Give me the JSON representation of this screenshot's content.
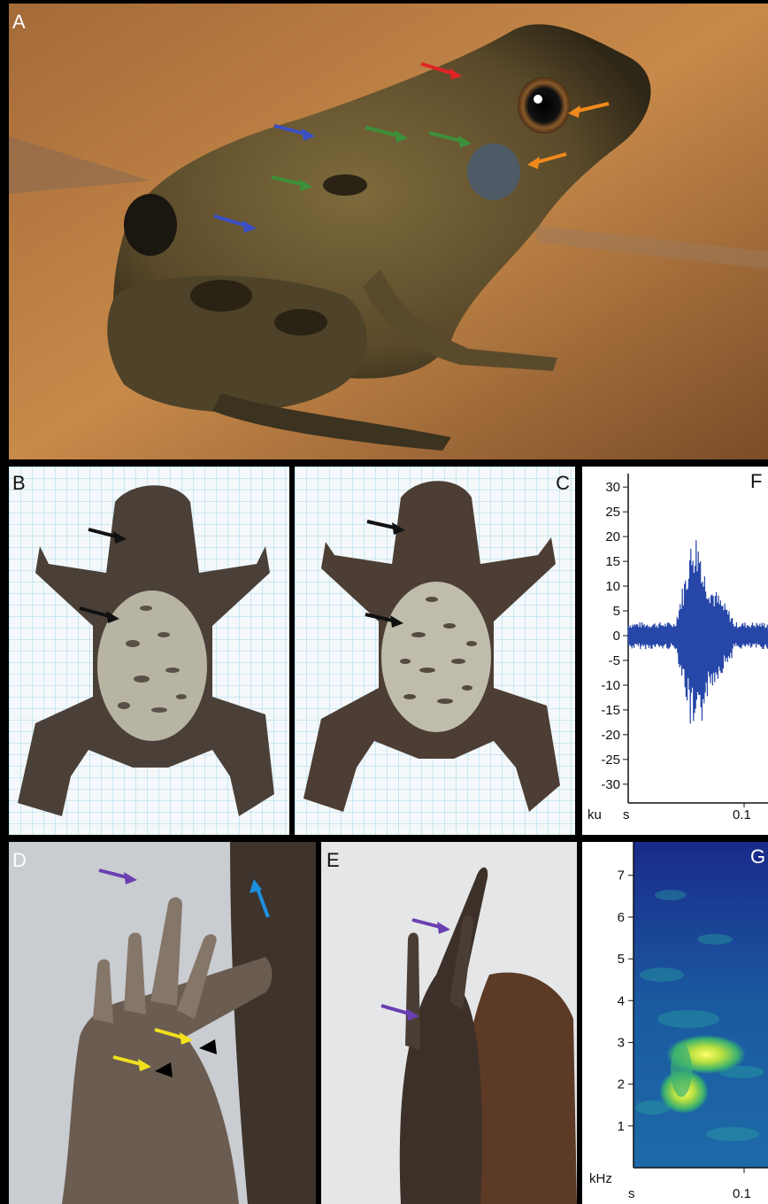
{
  "panels": {
    "A": {
      "label": "A"
    },
    "B": {
      "label": "B"
    },
    "C": {
      "label": "C"
    },
    "D": {
      "label": "D"
    },
    "E": {
      "label": "E"
    },
    "F": {
      "label": "F"
    },
    "G": {
      "label": "G"
    }
  },
  "chart_data": [
    {
      "type": "line",
      "panel": "F",
      "title": "",
      "ylabel": "ku",
      "xlabel": "s",
      "x_ticks": [
        "0.1"
      ],
      "y_ticks": [
        30,
        25,
        20,
        15,
        10,
        5,
        0,
        -5,
        -10,
        -15,
        -20,
        -25,
        -30
      ],
      "ylim": [
        -32,
        32
      ],
      "series": [
        {
          "values_peak_max": 21,
          "values_peak_min": -23
        }
      ],
      "color": "#2747a8"
    },
    {
      "type": "heatmap",
      "panel": "G",
      "title": "",
      "ylabel": "kHz",
      "xlabel": "s",
      "x_ticks": [
        "0.1"
      ],
      "y_ticks": [
        7,
        6,
        5,
        4,
        3,
        2,
        1
      ],
      "ylim": [
        0,
        7.8
      ],
      "hotspots_khz": [
        2.3,
        0.9
      ]
    }
  ],
  "colors": {
    "red_arrow": "#e02424",
    "blue_arrow": "#3a4fc4",
    "green_arrow": "#3d8f3a",
    "orange_arrow": "#f08a1c",
    "black_arrow": "#111111",
    "purple_arrow": "#6a3fb0",
    "cyan_arrow": "#1e90e0",
    "yellow_arrow": "#f0e020",
    "waveform": "#2747a8"
  }
}
